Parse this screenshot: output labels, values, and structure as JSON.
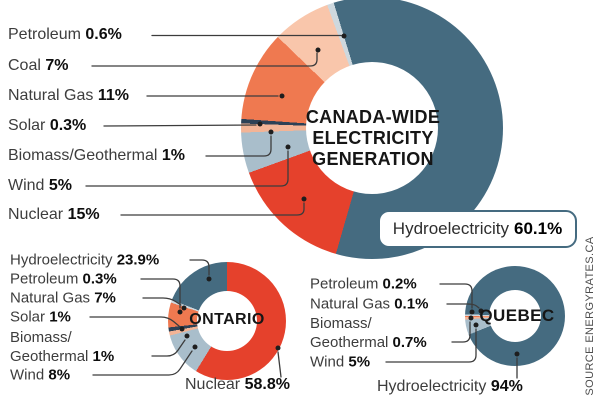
{
  "source_credit": "SOURCE ENERGYRATES.CA",
  "palette": {
    "hydro": "#456b80",
    "nuclear": "#e5412c",
    "wind": "#a9becb",
    "biomass": "#f3b496",
    "solar": "#2c4156",
    "natural_gas": "#ef7950",
    "coal": "#f9c6ab",
    "petroleum": "#ced8de"
  },
  "chart_data": {
    "canada": {
      "type": "pie",
      "center_title": "CANADA-WIDE\nELECTRICITY\nGENERATION",
      "slices": [
        {
          "key": "hydro",
          "name": "Hydroelectricity",
          "pct": 60.1,
          "display": "60.1%"
        },
        {
          "key": "nuclear",
          "name": "Nuclear",
          "pct": 15,
          "display": "15%"
        },
        {
          "key": "wind",
          "name": "Wind",
          "pct": 5,
          "display": "5%"
        },
        {
          "key": "biomass",
          "name": "Biomass/Geothermal",
          "pct": 1,
          "display": "1%"
        },
        {
          "key": "solar",
          "name": "Solar",
          "pct": 0.3,
          "display": "0.3%"
        },
        {
          "key": "natural_gas",
          "name": "Natural Gas",
          "pct": 11,
          "display": "11%"
        },
        {
          "key": "coal",
          "name": "Coal",
          "pct": 7,
          "display": "7%"
        },
        {
          "key": "petroleum",
          "name": "Petroleum",
          "pct": 0.6,
          "display": "0.6%"
        }
      ],
      "callout": {
        "label": "Hydroelectricity",
        "value": "60.1%"
      }
    },
    "ontario": {
      "type": "pie",
      "center_title": "ONTARIO",
      "slices": [
        {
          "key": "nuclear",
          "name": "Nuclear",
          "pct": 58.8,
          "display": "58.8%"
        },
        {
          "key": "wind",
          "name": "Wind",
          "pct": 8,
          "display": "8%"
        },
        {
          "key": "biomass",
          "name": "Biomass/Geothermal",
          "pct": 1,
          "display": "1%"
        },
        {
          "key": "solar",
          "name": "Solar",
          "pct": 1,
          "display": "1%"
        },
        {
          "key": "natural_gas",
          "name": "Natural Gas",
          "pct": 7,
          "display": "7%"
        },
        {
          "key": "petroleum",
          "name": "Petroleum",
          "pct": 0.3,
          "display": "0.3%"
        },
        {
          "key": "hydro",
          "name": "Hydroelectricity",
          "pct": 23.9,
          "display": "23.9%"
        }
      ]
    },
    "quebec": {
      "type": "pie",
      "center_title": "QUEBEC",
      "slices": [
        {
          "key": "hydro",
          "name": "Hydroelectricity",
          "pct": 94,
          "display": "94%"
        },
        {
          "key": "wind",
          "name": "Wind",
          "pct": 5,
          "display": "5%"
        },
        {
          "key": "biomass",
          "name": "Biomass/Geothermal",
          "pct": 0.7,
          "display": "0.7%"
        },
        {
          "key": "natural_gas",
          "name": "Natural Gas",
          "pct": 0.1,
          "display": "0.1%"
        },
        {
          "key": "petroleum",
          "name": "Petroleum",
          "pct": 0.2,
          "display": "0.2%"
        }
      ]
    }
  }
}
